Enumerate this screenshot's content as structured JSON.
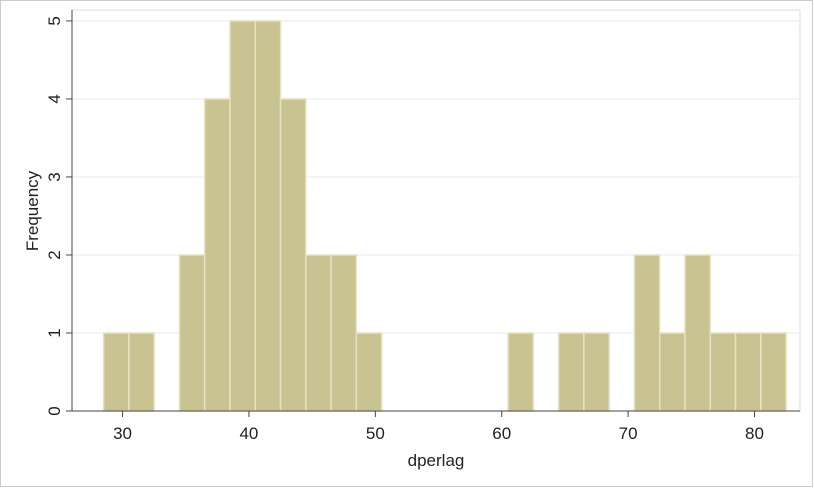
{
  "chart_data": {
    "type": "histogram",
    "x_label": "dperlag",
    "y_label": "Frequency",
    "bins": [
      28.5,
      30.5,
      32.5,
      34.5,
      36.5,
      38.5,
      40.5,
      42.5,
      44.5,
      46.5,
      48.5,
      50.5,
      52.5,
      54.5,
      56.5,
      58.5,
      60.5,
      62.5,
      64.5,
      66.5,
      68.5,
      70.5,
      72.5,
      74.5,
      76.5,
      78.5,
      80.5,
      82.5
    ],
    "values": [
      1,
      1,
      0,
      2,
      4,
      5,
      5,
      4,
      2,
      2,
      1,
      0,
      0,
      0,
      0,
      0,
      1,
      0,
      1,
      1,
      0,
      2,
      1,
      2,
      1,
      1,
      1
    ],
    "color": "#c9c291",
    "xlim": [
      26,
      83.6
    ],
    "xticks": [
      30,
      40,
      50,
      60,
      70,
      80
    ],
    "ylim": [
      0,
      5.14
    ],
    "yticks": [
      0,
      1,
      2,
      3,
      4,
      5
    ],
    "grid": true
  }
}
